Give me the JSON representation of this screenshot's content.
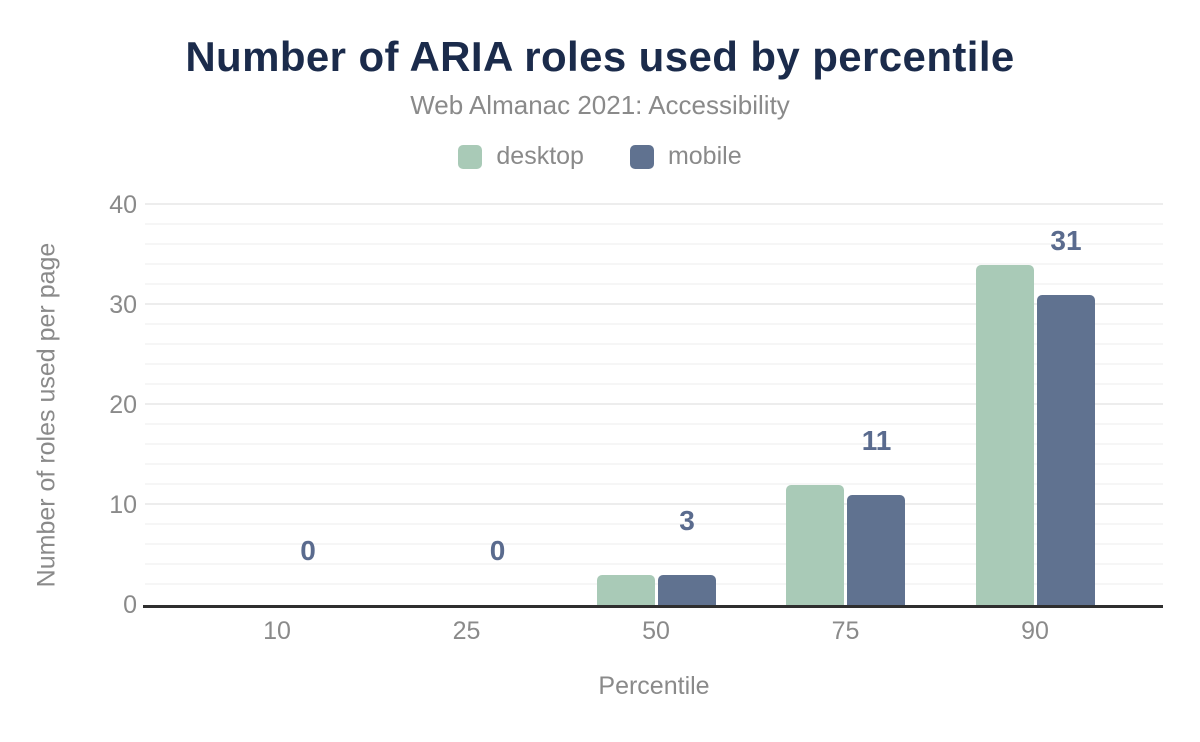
{
  "chart_data": {
    "type": "bar",
    "title": "Number of ARIA roles used by percentile",
    "subtitle": "Web Almanac 2021: Accessibility",
    "xlabel": "Percentile",
    "ylabel": "Number of roles used per page",
    "categories": [
      "10",
      "25",
      "50",
      "75",
      "90"
    ],
    "series": [
      {
        "name": "desktop",
        "color": "#a9cab7",
        "values": [
          0,
          0,
          3,
          12,
          34
        ]
      },
      {
        "name": "mobile",
        "color": "#607290",
        "values": [
          0,
          0,
          3,
          11,
          31
        ]
      }
    ],
    "data_labels": {
      "series": "mobile",
      "values": [
        "0",
        "0",
        "3",
        "11",
        "31"
      ],
      "color": "#5a6b8e"
    },
    "ylim": [
      0,
      40
    ],
    "yticks": [
      0,
      10,
      20,
      30,
      40
    ],
    "minor_grid_step": 2,
    "grid": true,
    "legend_position": "top",
    "colors": {
      "title_text": "#1b2b4b",
      "muted_text": "#8a8a8a",
      "axis_line": "#2f2f2f"
    }
  }
}
